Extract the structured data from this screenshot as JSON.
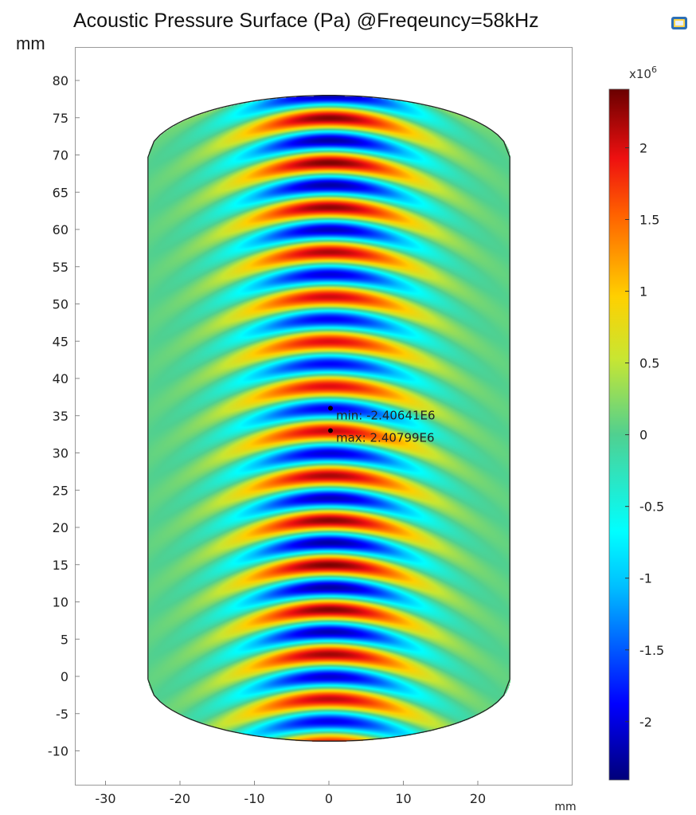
{
  "title": "Acoustic Pressure Surface (Pa)  @Freqeuncy=58kHz",
  "icon": "plot-window-icon",
  "chart_data": {
    "type": "heatmap",
    "title": "Acoustic Pressure Surface (Pa)  @Freqeuncy=58kHz",
    "xlabel": "mm",
    "ylabel": "mm",
    "xlim": [
      -34,
      33
    ],
    "ylim": [
      -15,
      84
    ],
    "x_ticks": [
      -30,
      -20,
      -10,
      0,
      10,
      20
    ],
    "y_ticks": [
      -10,
      -5,
      0,
      5,
      10,
      15,
      20,
      25,
      30,
      35,
      40,
      45,
      50,
      55,
      60,
      65,
      70,
      75,
      80
    ],
    "colorbar": {
      "multiplier": "x10",
      "exponent": "6",
      "range": [
        -2.40641,
        2.40799
      ],
      "ticks": [
        -2,
        -1.5,
        -1,
        -0.5,
        0,
        0.5,
        1,
        1.5,
        2
      ],
      "colormap": "rainbow"
    },
    "annotations": [
      {
        "label": "min: -2.40641E6",
        "x": 0,
        "y": 36,
        "value": -2406410
      },
      {
        "label": "max: 2.40799E6",
        "x": 0,
        "y": 33,
        "value": 2407990
      }
    ],
    "domain": {
      "shape": "cylinder section",
      "x_range": [
        -24.3,
        24.3
      ],
      "y_range": [
        -8.7,
        78
      ]
    },
    "wave": {
      "peak_x": 0,
      "period_mm": 6
    }
  }
}
